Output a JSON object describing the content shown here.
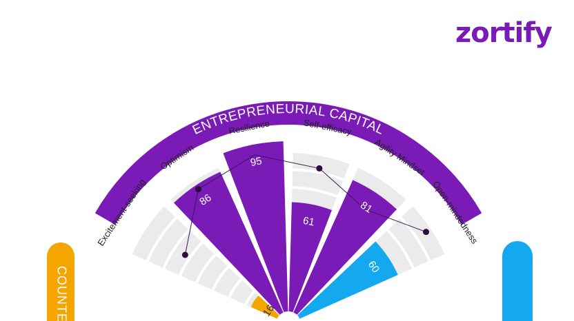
{
  "brand": {
    "name": "zortify",
    "color": "#7a1bb8"
  },
  "colors": {
    "purple": "#7a1bb8",
    "blue": "#14a8ee",
    "orange": "#f5a500",
    "track": "#ebebeb",
    "line": "#3a1650",
    "dot": "#2b0a40"
  },
  "chart_data": {
    "type": "radial-bar",
    "scale": [
      0,
      100
    ],
    "groups": [
      {
        "name": "ENTREPRENEURIAL CAPITAL",
        "color": "#7a1bb8"
      },
      {
        "name": "COUNTE",
        "color": "#f5a500"
      },
      {
        "name": "",
        "color": "#14a8ee"
      }
    ],
    "traits": [
      {
        "label": "Excitement-seeking",
        "value": 16,
        "group": "COUNTE",
        "bar_color": "#f5a500"
      },
      {
        "label": "Optimism",
        "value": 86,
        "group": "ENTREPRENEURIAL CAPITAL",
        "bar_color": "#7a1bb8"
      },
      {
        "label": "Resilience",
        "value": 95,
        "group": "ENTREPRENEURIAL CAPITAL",
        "bar_color": "#7a1bb8"
      },
      {
        "label": "Self-efficacy",
        "value": 61,
        "group": "ENTREPRENEURIAL CAPITAL",
        "bar_color": "#7a1bb8"
      },
      {
        "label": "Agility Mindset",
        "value": 81,
        "group": "ENTREPRENEURIAL CAPITAL",
        "bar_color": "#7a1bb8"
      },
      {
        "label": "Open-mindedness",
        "value": 60,
        "group": "",
        "bar_color": "#14a8ee"
      }
    ],
    "benchmark_line": {
      "color": "#3a1650"
    }
  }
}
